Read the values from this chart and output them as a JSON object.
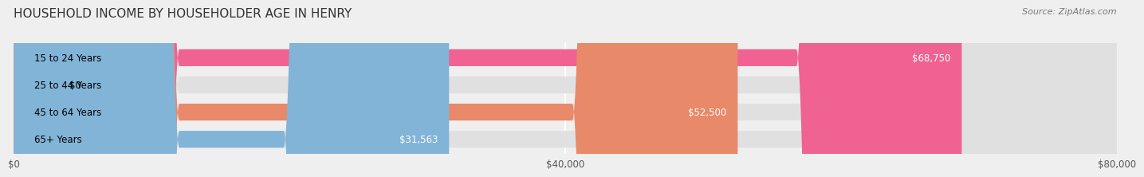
{
  "title": "HOUSEHOLD INCOME BY HOUSEHOLDER AGE IN HENRY",
  "source": "Source: ZipAtlas.com",
  "categories": [
    "15 to 24 Years",
    "25 to 44 Years",
    "45 to 64 Years",
    "65+ Years"
  ],
  "values": [
    68750,
    0,
    52500,
    31563
  ],
  "bar_colors": [
    "#f06292",
    "#f5c87a",
    "#e8896a",
    "#82b4d8"
  ],
  "value_labels": [
    "$68,750",
    "$0",
    "$52,500",
    "$31,563"
  ],
  "xlim": [
    0,
    80000
  ],
  "xticks": [
    0,
    40000,
    80000
  ],
  "xticklabels": [
    "$0",
    "$40,000",
    "$80,000"
  ],
  "background_color": "#efefef",
  "bar_background": "#e0e0e0",
  "title_fontsize": 11,
  "source_fontsize": 8
}
